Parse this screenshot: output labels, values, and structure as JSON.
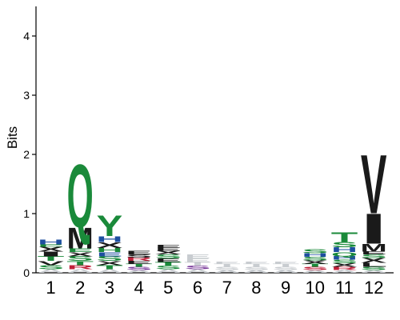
{
  "chart_data": {
    "type": "sequence-logo",
    "ylabel": "Bits",
    "ylim": [
      0,
      4.5
    ],
    "yticks": [
      "0",
      "1",
      "2",
      "3",
      "4"
    ],
    "positions": [
      "1",
      "2",
      "3",
      "4",
      "5",
      "6",
      "7",
      "8",
      "9",
      "10",
      "11",
      "12"
    ],
    "colors": {
      "hydrophobic": "#1a1a1a",
      "polar": "#1a8a3a",
      "basic": "#1e4fa0",
      "acidic": "#c0203a",
      "neutral": "#7a3a9a",
      "faint": "#c8ccd0"
    },
    "stacks": [
      {
        "position": "1",
        "total": 0.56,
        "letters": [
          {
            "letter": "A",
            "bits": 0.06,
            "color": "faint"
          },
          {
            "letter": "S",
            "bits": 0.07,
            "color": "polar"
          },
          {
            "letter": "V",
            "bits": 0.07,
            "color": "hydrophobic"
          },
          {
            "letter": "T",
            "bits": 0.08,
            "color": "polar"
          },
          {
            "letter": "I",
            "bits": 0.08,
            "color": "hydrophobic"
          },
          {
            "letter": "X",
            "bits": 0.08,
            "color": "hydrophobic"
          },
          {
            "letter": "E",
            "bits": 0.04,
            "color": "polar"
          },
          {
            "letter": "H",
            "bits": 0.08,
            "color": "basic"
          }
        ]
      },
      {
        "position": "2",
        "total": 1.86,
        "letters": [
          {
            "letter": "A",
            "bits": 0.06,
            "color": "faint"
          },
          {
            "letter": "R",
            "bits": 0.07,
            "color": "acidic"
          },
          {
            "letter": "T",
            "bits": 0.07,
            "color": "polar"
          },
          {
            "letter": "S",
            "bits": 0.08,
            "color": "polar"
          },
          {
            "letter": "X",
            "bits": 0.07,
            "color": "hydrophobic"
          },
          {
            "letter": "E",
            "bits": 0.06,
            "color": "polar"
          },
          {
            "letter": "M",
            "bits": 0.36,
            "color": "hydrophobic"
          },
          {
            "letter": "Q",
            "bits": 1.09,
            "color": "polar"
          }
        ]
      },
      {
        "position": "3",
        "total": 0.98,
        "letters": [
          {
            "letter": "A",
            "bits": 0.06,
            "color": "faint"
          },
          {
            "letter": "T",
            "bits": 0.07,
            "color": "polar"
          },
          {
            "letter": "X",
            "bits": 0.07,
            "color": "hydrophobic"
          },
          {
            "letter": "S",
            "bits": 0.08,
            "color": "polar"
          },
          {
            "letter": "E",
            "bits": 0.07,
            "color": "basic"
          },
          {
            "letter": "H",
            "bits": 0.07,
            "color": "polar"
          },
          {
            "letter": "X",
            "bits": 0.1,
            "color": "hydrophobic"
          },
          {
            "letter": "H",
            "bits": 0.1,
            "color": "basic"
          },
          {
            "letter": "Y",
            "bits": 0.36,
            "color": "polar"
          }
        ]
      },
      {
        "position": "4",
        "total": 0.37,
        "letters": [
          {
            "letter": "A",
            "bits": 0.05,
            "color": "faint"
          },
          {
            "letter": "S",
            "bits": 0.05,
            "color": "neutral"
          },
          {
            "letter": "T",
            "bits": 0.05,
            "color": "polar"
          },
          {
            "letter": "E",
            "bits": 0.05,
            "color": "hydrophobic"
          },
          {
            "letter": "R",
            "bits": 0.06,
            "color": "acidic"
          },
          {
            "letter": "S",
            "bits": 0.05,
            "color": "hydrophobic"
          },
          {
            "letter": "E",
            "bits": 0.06,
            "color": "hydrophobic"
          }
        ]
      },
      {
        "position": "5",
        "total": 0.47,
        "letters": [
          {
            "letter": "A",
            "bits": 0.06,
            "color": "faint"
          },
          {
            "letter": "S",
            "bits": 0.06,
            "color": "polar"
          },
          {
            "letter": "T",
            "bits": 0.06,
            "color": "polar"
          },
          {
            "letter": "E",
            "bits": 0.06,
            "color": "hydrophobic"
          },
          {
            "letter": "S",
            "bits": 0.07,
            "color": "polar"
          },
          {
            "letter": "X",
            "bits": 0.06,
            "color": "hydrophobic"
          },
          {
            "letter": "E",
            "bits": 0.05,
            "color": "hydrophobic"
          },
          {
            "letter": "E",
            "bits": 0.05,
            "color": "hydrophobic"
          }
        ]
      },
      {
        "position": "6",
        "total": 0.31,
        "letters": [
          {
            "letter": "A",
            "bits": 0.06,
            "color": "faint"
          },
          {
            "letter": "S",
            "bits": 0.06,
            "color": "neutral"
          },
          {
            "letter": "T",
            "bits": 0.06,
            "color": "faint"
          },
          {
            "letter": "E",
            "bits": 0.06,
            "color": "faint"
          },
          {
            "letter": "E",
            "bits": 0.07,
            "color": "faint"
          }
        ]
      },
      {
        "position": "7",
        "total": 0.19,
        "letters": [
          {
            "letter": "A",
            "bits": 0.05,
            "color": "faint"
          },
          {
            "letter": "S",
            "bits": 0.05,
            "color": "faint"
          },
          {
            "letter": "T",
            "bits": 0.05,
            "color": "faint"
          },
          {
            "letter": "E",
            "bits": 0.04,
            "color": "faint"
          }
        ]
      },
      {
        "position": "8",
        "total": 0.19,
        "letters": [
          {
            "letter": "A",
            "bits": 0.05,
            "color": "faint"
          },
          {
            "letter": "S",
            "bits": 0.05,
            "color": "faint"
          },
          {
            "letter": "T",
            "bits": 0.05,
            "color": "faint"
          },
          {
            "letter": "E",
            "bits": 0.04,
            "color": "faint"
          }
        ]
      },
      {
        "position": "9",
        "total": 0.19,
        "letters": [
          {
            "letter": "A",
            "bits": 0.05,
            "color": "faint"
          },
          {
            "letter": "S",
            "bits": 0.05,
            "color": "faint"
          },
          {
            "letter": "T",
            "bits": 0.05,
            "color": "faint"
          },
          {
            "letter": "E",
            "bits": 0.04,
            "color": "faint"
          }
        ]
      },
      {
        "position": "10",
        "total": 0.4,
        "letters": [
          {
            "letter": "A",
            "bits": 0.05,
            "color": "faint"
          },
          {
            "letter": "S",
            "bits": 0.05,
            "color": "acidic"
          },
          {
            "letter": "T",
            "bits": 0.05,
            "color": "polar"
          },
          {
            "letter": "X",
            "bits": 0.06,
            "color": "hydrophobic"
          },
          {
            "letter": "S",
            "bits": 0.06,
            "color": "polar"
          },
          {
            "letter": "H",
            "bits": 0.06,
            "color": "basic"
          },
          {
            "letter": "S",
            "bits": 0.07,
            "color": "polar"
          }
        ]
      },
      {
        "position": "11",
        "total": 0.69,
        "letters": [
          {
            "letter": "A",
            "bits": 0.05,
            "color": "faint"
          },
          {
            "letter": "R",
            "bits": 0.05,
            "color": "acidic"
          },
          {
            "letter": "X",
            "bits": 0.06,
            "color": "hydrophobic"
          },
          {
            "letter": "S",
            "bits": 0.06,
            "color": "polar"
          },
          {
            "letter": "H",
            "bits": 0.06,
            "color": "basic"
          },
          {
            "letter": "Q",
            "bits": 0.07,
            "color": "polar"
          },
          {
            "letter": "H",
            "bits": 0.08,
            "color": "basic"
          },
          {
            "letter": "S",
            "bits": 0.09,
            "color": "polar"
          },
          {
            "letter": "T",
            "bits": 0.17,
            "color": "polar"
          }
        ]
      },
      {
        "position": "12",
        "total": 2.03,
        "letters": [
          {
            "letter": "A",
            "bits": 0.05,
            "color": "faint"
          },
          {
            "letter": "S",
            "bits": 0.05,
            "color": "polar"
          },
          {
            "letter": "L",
            "bits": 0.07,
            "color": "hydrophobic"
          },
          {
            "letter": "X",
            "bits": 0.08,
            "color": "hydrophobic"
          },
          {
            "letter": "S",
            "bits": 0.06,
            "color": "polar"
          },
          {
            "letter": "E",
            "bits": 0.05,
            "color": "hydrophobic"
          },
          {
            "letter": "M",
            "bits": 0.13,
            "color": "hydrophobic"
          },
          {
            "letter": "I",
            "bits": 0.52,
            "color": "hydrophobic"
          },
          {
            "letter": "V",
            "bits": 1.02,
            "color": "hydrophobic"
          }
        ]
      }
    ]
  }
}
